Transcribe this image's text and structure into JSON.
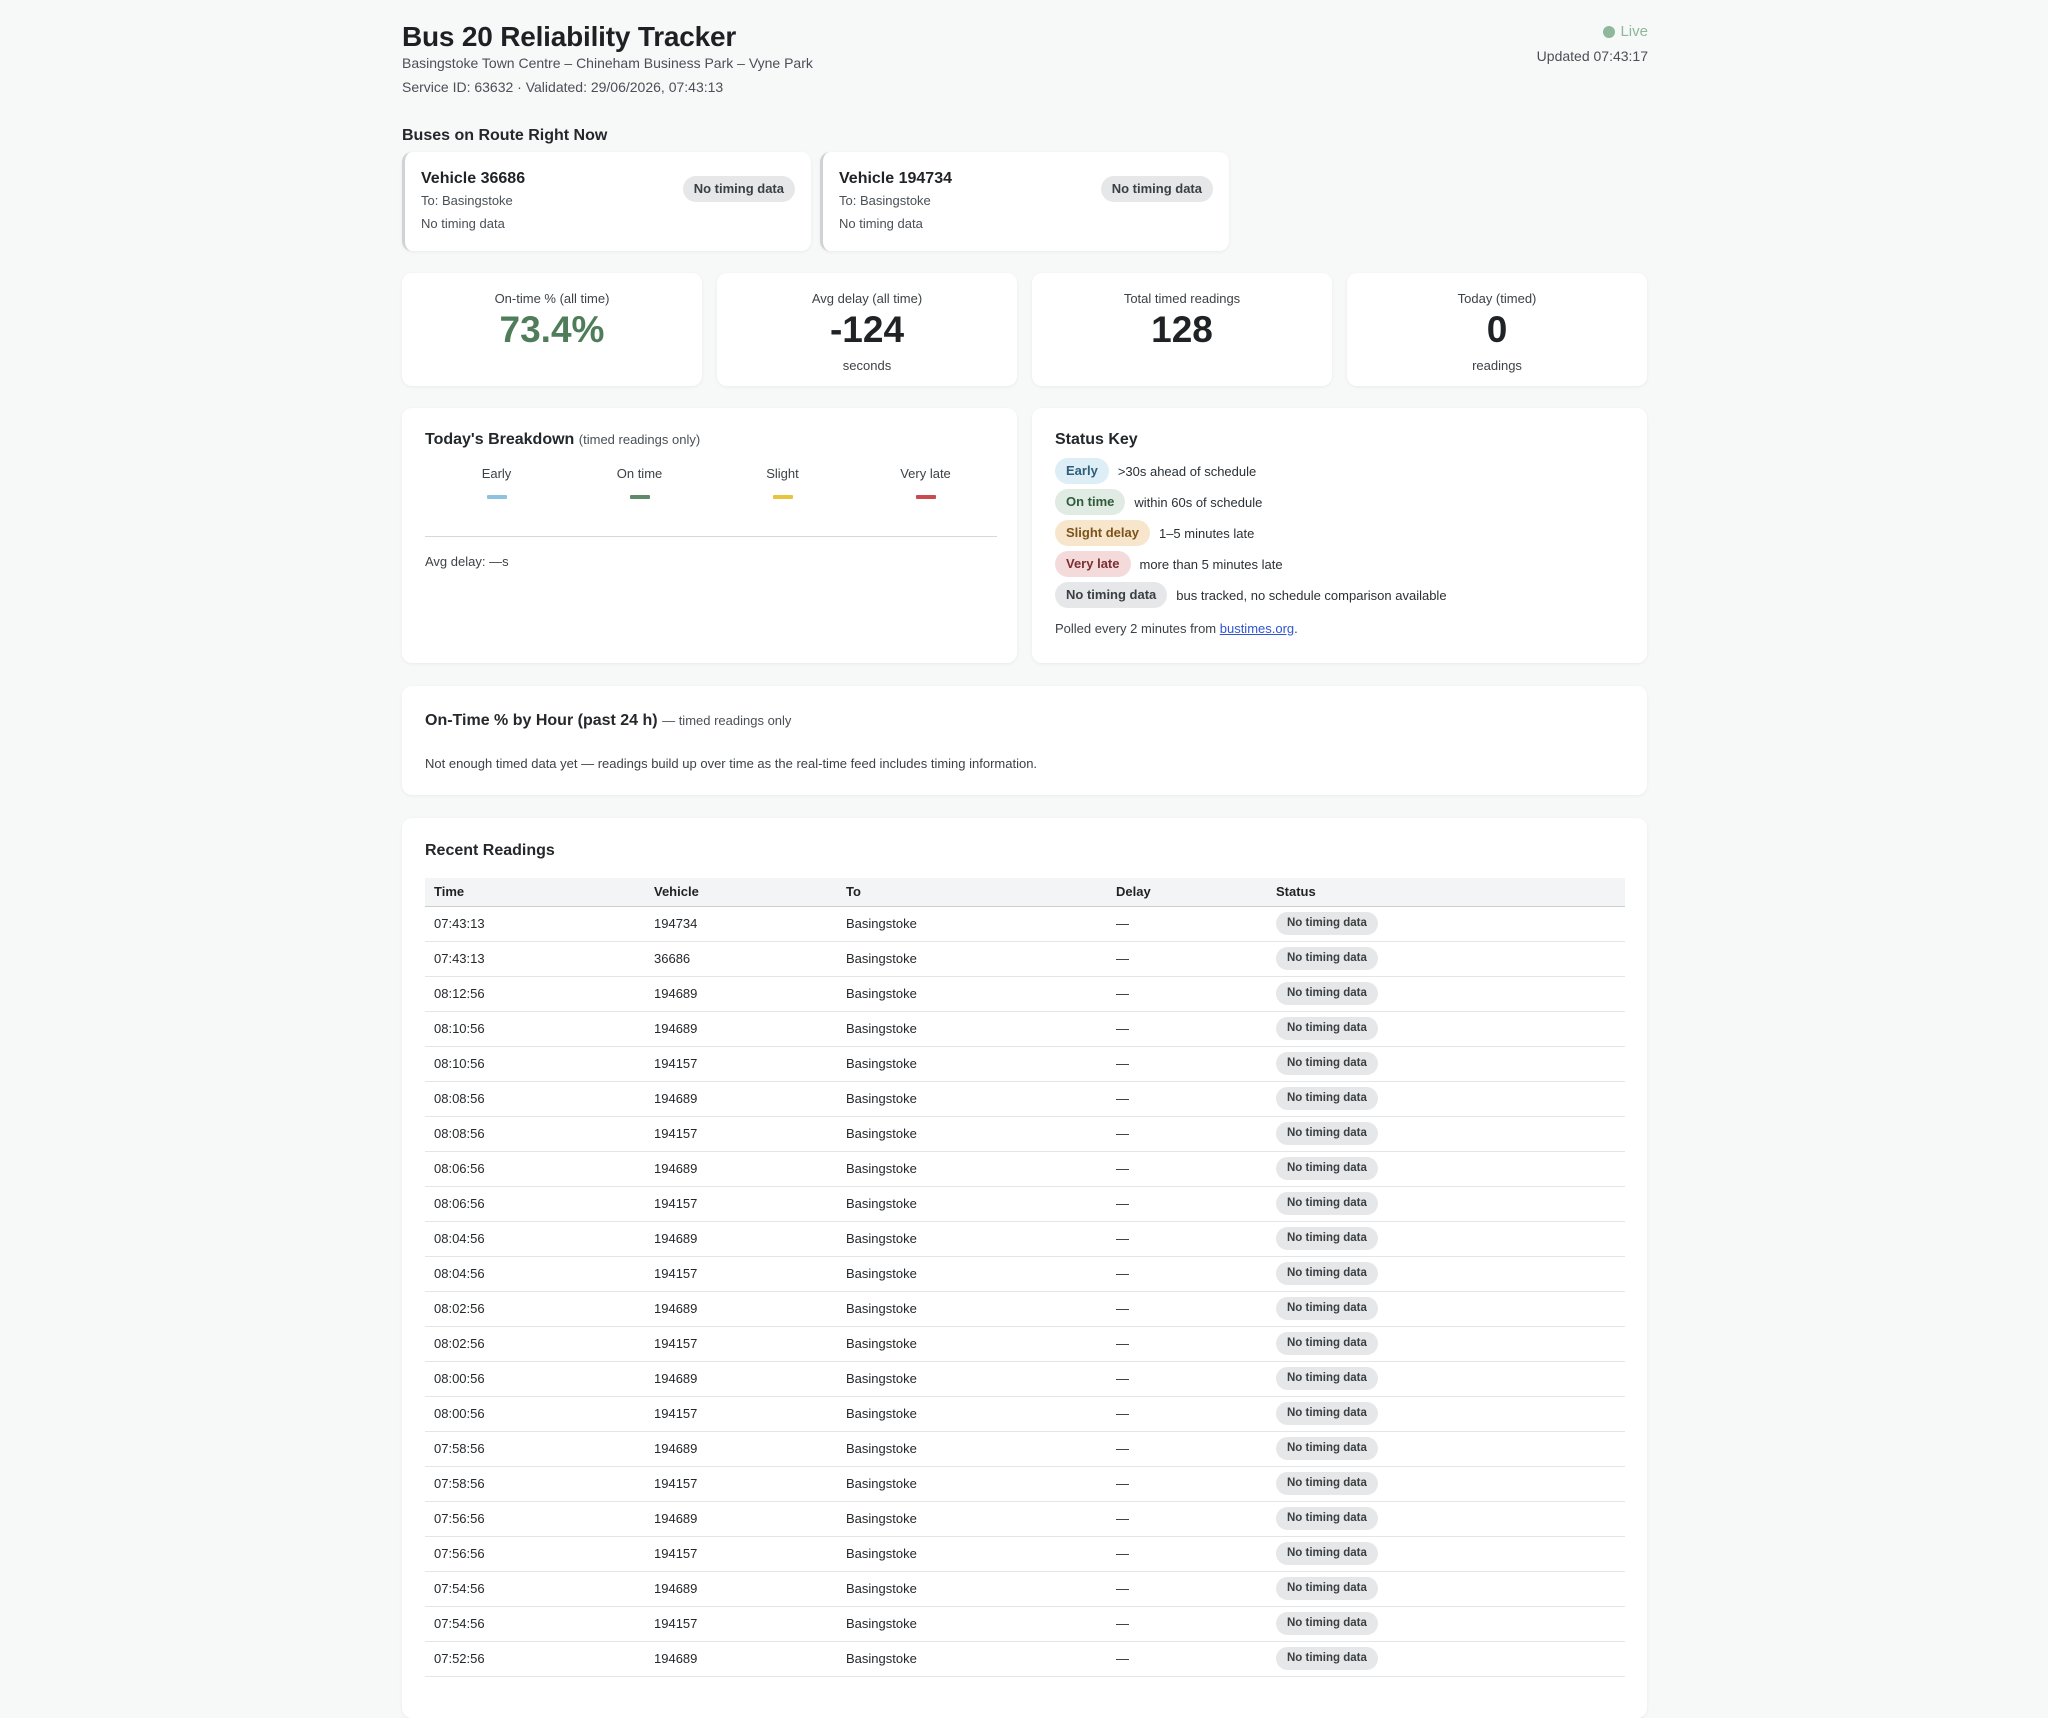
{
  "header": {
    "title": "Bus 20 Reliability Tracker",
    "route": "Basingstoke Town Centre – Chineham Business Park – Vyne Park",
    "service": "Service ID: 63632 · Validated: 29/06/2026, 07:43:13",
    "live_label": "Live",
    "updated": "Updated 07:43:17",
    "colors": {
      "live": "#8fb79b"
    }
  },
  "buses": {
    "heading": "Buses on Route Right Now",
    "vehicles": [
      {
        "name": "Vehicle 36686",
        "to": "To: Basingstoke",
        "status": "No timing data",
        "badge": "No timing data"
      },
      {
        "name": "Vehicle 194734",
        "to": "To: Basingstoke",
        "status": "No timing data",
        "badge": "No timing data"
      }
    ]
  },
  "stats": [
    {
      "label": "On-time % (all time)",
      "value": "73.4%",
      "sub": ""
    },
    {
      "label": "Avg delay (all time)",
      "value": "-124",
      "sub": "seconds"
    },
    {
      "label": "Total timed readings",
      "value": "128",
      "sub": ""
    },
    {
      "label": "Today (timed)",
      "value": "0",
      "sub": "readings"
    }
  ],
  "breakdown": {
    "title": "Today's Breakdown",
    "subtitle": "(timed readings only)",
    "columns": [
      {
        "label": "Early",
        "color": "#8ec3e0"
      },
      {
        "label": "On time",
        "color": "#5e8a68"
      },
      {
        "label": "Slight",
        "color": "#e8c53e"
      },
      {
        "label": "Very late",
        "color": "#c94a4f"
      }
    ],
    "avg": "Avg delay: —s"
  },
  "status_key": {
    "title": "Status Key",
    "items": [
      {
        "badge": "Early",
        "desc": ">30s ahead of schedule"
      },
      {
        "badge": "On time",
        "desc": "within 60s of schedule"
      },
      {
        "badge": "Slight delay",
        "desc": "1–5 minutes late"
      },
      {
        "badge": "Very late",
        "desc": "more than 5 minutes late"
      },
      {
        "badge": "No timing data",
        "desc": "bus tracked, no schedule comparison available"
      }
    ],
    "polled_prefix": "Polled every 2 minutes from ",
    "polled_link": "bustimes.org",
    "polled_suffix": "."
  },
  "hourly": {
    "title": "On-Time % by Hour (past 24 h)",
    "subtitle": "— timed readings only",
    "message": "Not enough timed data yet — readings build up over time as the real-time feed includes timing information."
  },
  "recent": {
    "title": "Recent Readings",
    "columns": [
      "Time",
      "Vehicle",
      "To",
      "Delay",
      "Status"
    ],
    "rows": [
      [
        "07:43:13",
        "194734",
        "Basingstoke",
        "—",
        "No timing data"
      ],
      [
        "07:43:13",
        "36686",
        "Basingstoke",
        "—",
        "No timing data"
      ],
      [
        "08:12:56",
        "194689",
        "Basingstoke",
        "—",
        "No timing data"
      ],
      [
        "08:10:56",
        "194689",
        "Basingstoke",
        "—",
        "No timing data"
      ],
      [
        "08:10:56",
        "194157",
        "Basingstoke",
        "—",
        "No timing data"
      ],
      [
        "08:08:56",
        "194689",
        "Basingstoke",
        "—",
        "No timing data"
      ],
      [
        "08:08:56",
        "194157",
        "Basingstoke",
        "—",
        "No timing data"
      ],
      [
        "08:06:56",
        "194689",
        "Basingstoke",
        "—",
        "No timing data"
      ],
      [
        "08:06:56",
        "194157",
        "Basingstoke",
        "—",
        "No timing data"
      ],
      [
        "08:04:56",
        "194689",
        "Basingstoke",
        "—",
        "No timing data"
      ],
      [
        "08:04:56",
        "194157",
        "Basingstoke",
        "—",
        "No timing data"
      ],
      [
        "08:02:56",
        "194689",
        "Basingstoke",
        "—",
        "No timing data"
      ],
      [
        "08:02:56",
        "194157",
        "Basingstoke",
        "—",
        "No timing data"
      ],
      [
        "08:00:56",
        "194689",
        "Basingstoke",
        "—",
        "No timing data"
      ],
      [
        "08:00:56",
        "194157",
        "Basingstoke",
        "—",
        "No timing data"
      ],
      [
        "07:58:56",
        "194689",
        "Basingstoke",
        "—",
        "No timing data"
      ],
      [
        "07:58:56",
        "194157",
        "Basingstoke",
        "—",
        "No timing data"
      ],
      [
        "07:56:56",
        "194689",
        "Basingstoke",
        "—",
        "No timing data"
      ],
      [
        "07:56:56",
        "194157",
        "Basingstoke",
        "—",
        "No timing data"
      ],
      [
        "07:54:56",
        "194689",
        "Basingstoke",
        "—",
        "No timing data"
      ],
      [
        "07:54:56",
        "194157",
        "Basingstoke",
        "—",
        "No timing data"
      ],
      [
        "07:52:56",
        "194689",
        "Basingstoke",
        "—",
        "No timing data"
      ]
    ]
  }
}
